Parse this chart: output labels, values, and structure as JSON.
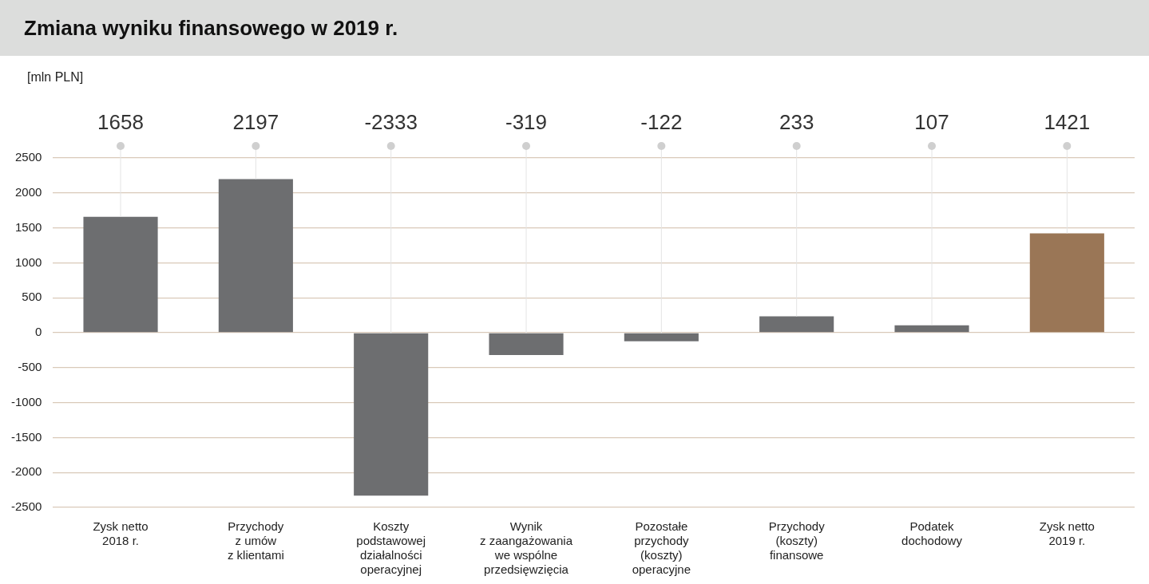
{
  "chart_data": {
    "type": "bar",
    "title": "Zmiana wyniku finansowego w 2019 r.",
    "annotations": [
      "[mln PLN]"
    ],
    "categories": [
      "Zysk netto\n2018 r.",
      "Przychody\nz umów\nz klientami",
      "Koszty\npodstawowej\ndziałalności\noperacyjnej",
      "Wynik\nz zaangażowania\nwe wspólne\nprzedsięwzięcia",
      "Pozostałe\nprzychody\n(koszty)\noperacyjne",
      "Przychody\n(koszty)\nfinansowe",
      "Podatek\ndochodowy",
      "Zysk netto\n2019 r."
    ],
    "values": [
      1658,
      2197,
      -2333,
      -319,
      -122,
      233,
      107,
      1421
    ],
    "colors": [
      "#6d6e70",
      "#6d6e70",
      "#6d6e70",
      "#6d6e70",
      "#6d6e70",
      "#6d6e70",
      "#6d6e70",
      "#9a7656"
    ],
    "ylim": [
      -2500,
      2500
    ],
    "yticks": [
      -2500,
      -2000,
      -1500,
      -1000,
      -500,
      0,
      500,
      1000,
      1500,
      2000,
      2500
    ],
    "grid": "y",
    "data_labels": true
  }
}
